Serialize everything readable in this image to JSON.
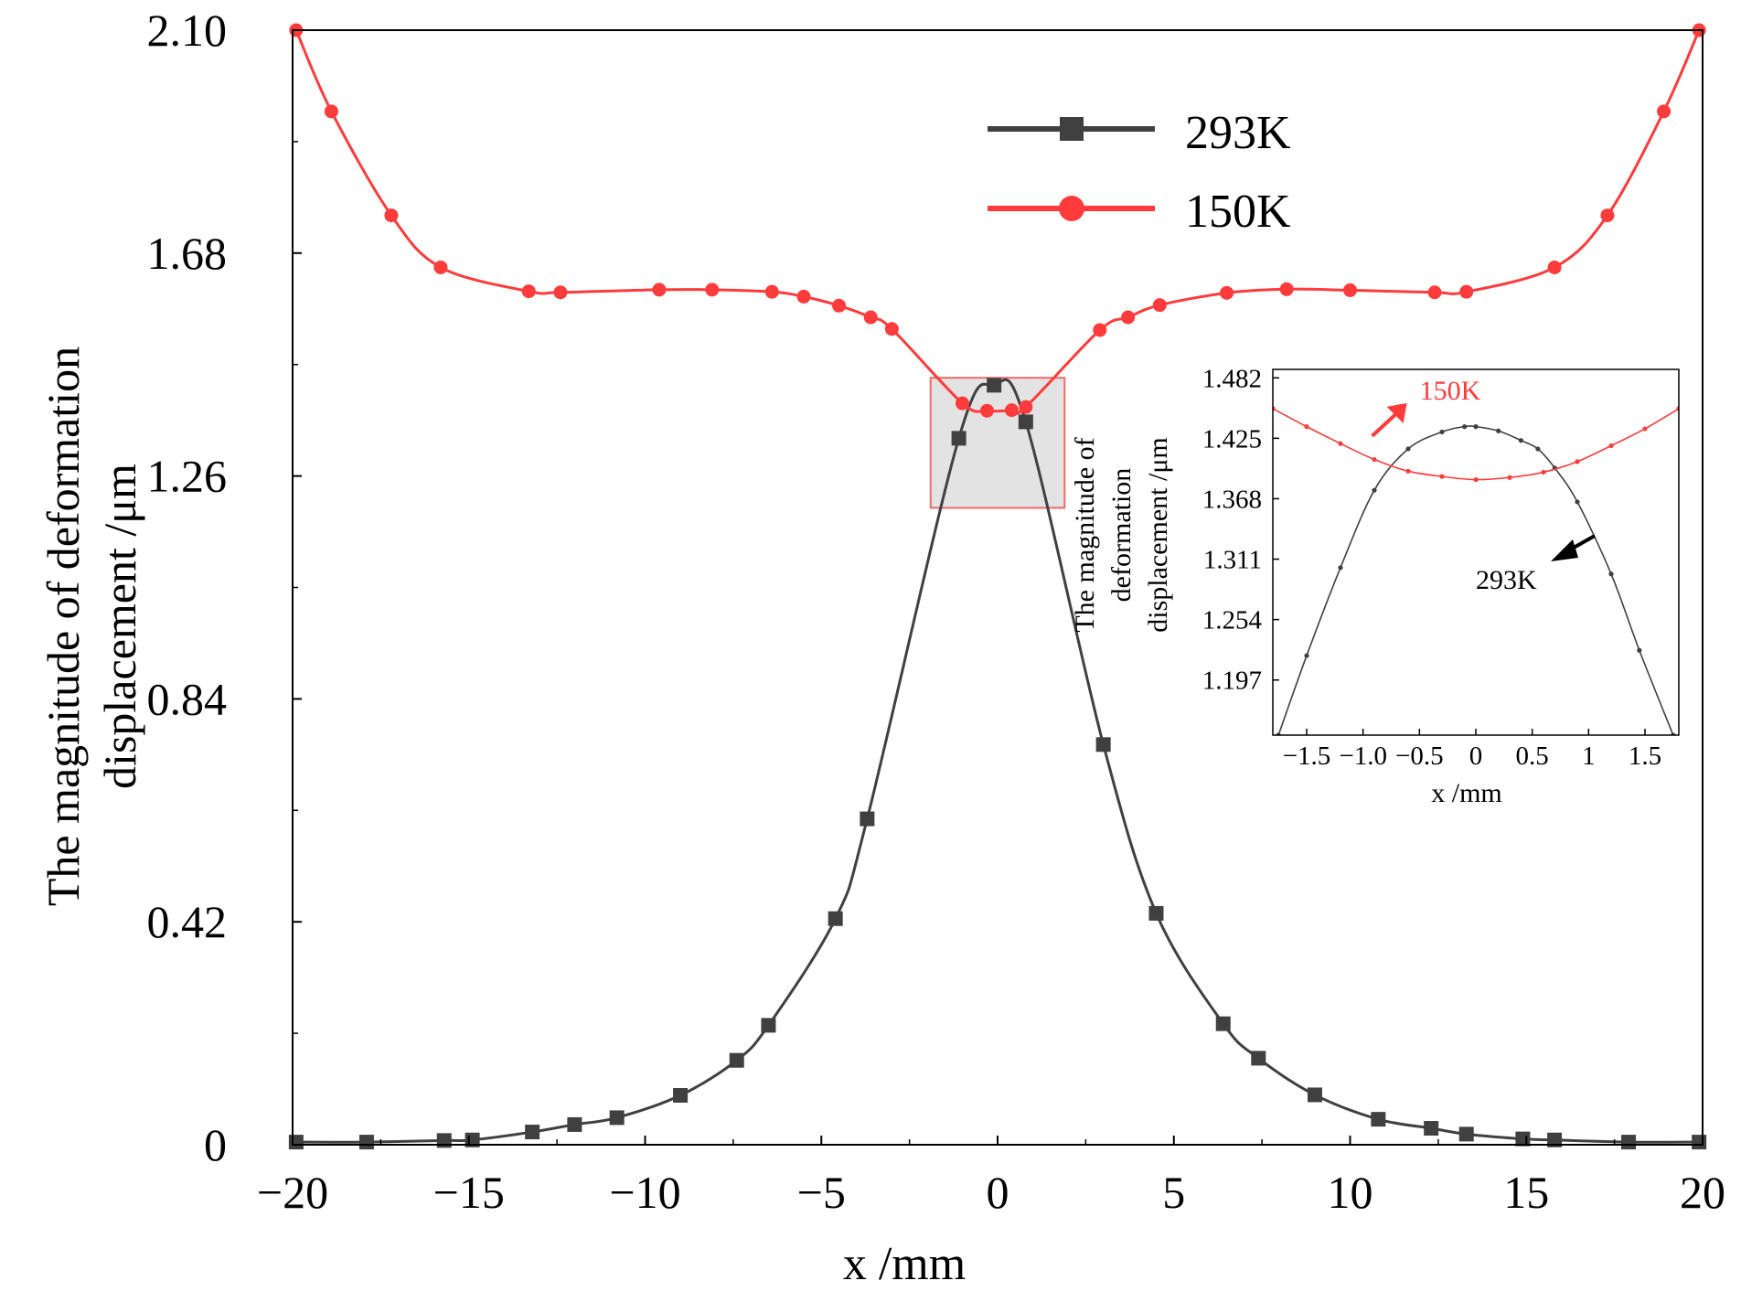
{
  "colors": {
    "series_293K": "#404040",
    "series_150K": "#ff3b3b",
    "zoom_fill": "#d9d9d9",
    "zoom_stroke": "#f06a6a",
    "axis": "#000000"
  },
  "chart_data": [
    {
      "type": "line",
      "role": "main",
      "title": "",
      "xlabel": "x /mm",
      "ylabel_lines": [
        "The magnitude of deformation",
        "displacement /μm"
      ],
      "xlim": [
        -20,
        20
      ],
      "ylim": [
        0,
        2.1
      ],
      "xticks": [
        -20,
        -15,
        -10,
        -5,
        0,
        5,
        10,
        15,
        20
      ],
      "xtick_labels": [
        "−20",
        "−15",
        "−10",
        "−5",
        "0",
        "5",
        "10",
        "15",
        "20"
      ],
      "yticks": [
        0,
        0.42,
        0.84,
        1.26,
        1.68,
        2.1
      ],
      "ytick_labels": [
        "0",
        "0.42",
        "0.84",
        "1.26",
        "1.68",
        "2.10"
      ],
      "grid": false,
      "legend_position": "top-center",
      "legend": [
        {
          "name": "293K",
          "marker": "square"
        },
        {
          "name": "150K",
          "marker": "circle"
        }
      ],
      "zoom_box": {
        "x": [
          -1.9,
          1.9
        ],
        "y": [
          1.2,
          1.445
        ]
      },
      "series": [
        {
          "name": "293K",
          "marker": "square",
          "x": [
            -19.9,
            -17.9,
            -15.7,
            -14.9,
            -13.2,
            -12.0,
            -10.8,
            -9.0,
            -7.4,
            -6.5,
            -4.6,
            -3.7,
            -1.1,
            -0.1,
            0.8,
            3.0,
            4.5,
            6.4,
            7.4,
            9.0,
            10.8,
            12.3,
            13.3,
            14.9,
            15.8,
            17.9,
            19.9
          ],
          "values": [
            0.005,
            0.005,
            0.008,
            0.009,
            0.024,
            0.038,
            0.051,
            0.093,
            0.159,
            0.225,
            0.426,
            0.614,
            1.331,
            1.431,
            1.362,
            0.754,
            0.436,
            0.228,
            0.163,
            0.094,
            0.048,
            0.031,
            0.02,
            0.011,
            0.009,
            0.005,
            0.005
          ]
        },
        {
          "name": "150K",
          "marker": "circle",
          "x": [
            -19.9,
            -18.9,
            -17.2,
            -15.8,
            -13.3,
            -12.4,
            -9.6,
            -8.1,
            -6.4,
            -5.5,
            -4.5,
            -3.6,
            -3.0,
            -1.0,
            -0.3,
            0.4,
            0.8,
            2.9,
            3.7,
            4.6,
            6.5,
            8.2,
            10.0,
            12.4,
            13.3,
            15.8,
            17.3,
            18.9,
            19.9
          ],
          "values": [
            2.1,
            1.947,
            1.751,
            1.653,
            1.608,
            1.606,
            1.611,
            1.611,
            1.607,
            1.598,
            1.581,
            1.559,
            1.537,
            1.397,
            1.383,
            1.384,
            1.39,
            1.535,
            1.559,
            1.582,
            1.605,
            1.612,
            1.61,
            1.606,
            1.607,
            1.653,
            1.751,
            1.947,
            2.1
          ]
        }
      ]
    },
    {
      "type": "line",
      "role": "inset",
      "title": "",
      "xlabel": "x /mm",
      "ylabel_lines": [
        "The magnitude of",
        "deformation",
        "displacement /μm"
      ],
      "xlim": [
        -1.8,
        1.8
      ],
      "ylim": [
        1.145,
        1.49
      ],
      "xticks": [
        -1.5,
        -1.0,
        -0.5,
        0,
        0.5,
        1,
        1.5
      ],
      "xtick_labels": [
        "−1.5",
        "−1.0",
        "−0.5",
        "0",
        "0.5",
        "1",
        "1.5"
      ],
      "yticks": [
        1.197,
        1.254,
        1.311,
        1.368,
        1.425,
        1.482
      ],
      "ytick_labels": [
        "1.197",
        "1.254",
        "1.311",
        "1.368",
        "1.425",
        "1.482"
      ],
      "grid": false,
      "annotations": [
        {
          "text": "150K",
          "series": "150K",
          "x": -0.66,
          "y": 1.453
        },
        {
          "text": "293K",
          "series": "293K",
          "x": 0.0,
          "y": 1.302
        }
      ],
      "series": [
        {
          "name": "293K",
          "x": [
            -1.75,
            -1.5,
            -1.2,
            -0.9,
            -0.6,
            -0.3,
            -0.1,
            0.0,
            0.2,
            0.4,
            0.55,
            0.7,
            0.9,
            1.2,
            1.45,
            1.75
          ],
          "values": [
            1.145,
            1.22,
            1.303,
            1.376,
            1.415,
            1.431,
            1.436,
            1.436,
            1.432,
            1.423,
            1.415,
            1.397,
            1.365,
            1.297,
            1.225,
            1.145
          ]
        },
        {
          "name": "150K",
          "x": [
            -1.8,
            -1.5,
            -1.2,
            -0.9,
            -0.6,
            -0.3,
            0.0,
            0.3,
            0.6,
            0.9,
            1.2,
            1.5,
            1.8
          ],
          "values": [
            1.453,
            1.436,
            1.42,
            1.405,
            1.394,
            1.389,
            1.386,
            1.388,
            1.393,
            1.403,
            1.418,
            1.434,
            1.453
          ]
        }
      ]
    }
  ]
}
